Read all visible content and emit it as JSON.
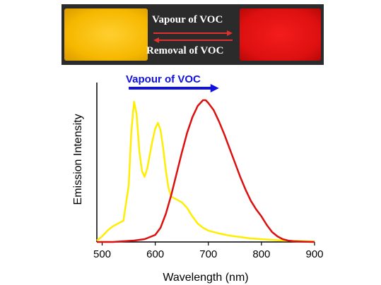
{
  "banner": {
    "top_label": "Vapour of VOC",
    "bottom_label": "Removal of VOC",
    "colors": {
      "background": "#2b2b2b",
      "yellow": "#f6b800",
      "red": "#dd1010",
      "arrow": "#e03030"
    }
  },
  "chart_data": {
    "type": "line",
    "title": "",
    "xlabel": "Wavelength (nm)",
    "ylabel": "Emission Intensity",
    "xlim": [
      490,
      900
    ],
    "ylim": [
      0,
      1.05
    ],
    "xticks": [
      500,
      600,
      700,
      800,
      900
    ],
    "xtick_labels": [
      "500",
      "600",
      "700",
      "800",
      "900"
    ],
    "grid": false,
    "legend": "none",
    "annotation": {
      "text": "Vapour of VOC",
      "color": "#1010e0",
      "arrow_from_x": 550,
      "arrow_to_x": 720
    },
    "series": [
      {
        "color": "#ffee00",
        "x": [
          490,
          500,
          510,
          520,
          530,
          540,
          550,
          555,
          560,
          565,
          570,
          575,
          580,
          585,
          590,
          595,
          600,
          605,
          610,
          615,
          620,
          625,
          630,
          640,
          650,
          660,
          670,
          680,
          690,
          700,
          720,
          740,
          760,
          780,
          800,
          820,
          840,
          860,
          880,
          900
        ],
        "y": [
          0.01,
          0.04,
          0.08,
          0.11,
          0.13,
          0.15,
          0.4,
          0.78,
          0.99,
          0.9,
          0.64,
          0.5,
          0.46,
          0.52,
          0.62,
          0.72,
          0.8,
          0.84,
          0.79,
          0.66,
          0.5,
          0.38,
          0.32,
          0.3,
          0.28,
          0.24,
          0.18,
          0.13,
          0.1,
          0.08,
          0.06,
          0.045,
          0.035,
          0.025,
          0.02,
          0.015,
          0.01,
          0.008,
          0.005,
          0.003
        ]
      },
      {
        "color": "#dd1010",
        "x": [
          490,
          520,
          540,
          560,
          580,
          600,
          610,
          620,
          630,
          640,
          650,
          660,
          670,
          680,
          690,
          695,
          700,
          710,
          720,
          730,
          740,
          750,
          760,
          770,
          780,
          790,
          800,
          810,
          820,
          830,
          840,
          850,
          860,
          880,
          900
        ],
        "y": [
          0.0,
          0.0,
          0.005,
          0.01,
          0.02,
          0.05,
          0.1,
          0.2,
          0.33,
          0.48,
          0.63,
          0.77,
          0.88,
          0.96,
          1.0,
          1.0,
          0.98,
          0.93,
          0.85,
          0.76,
          0.66,
          0.56,
          0.46,
          0.37,
          0.29,
          0.23,
          0.18,
          0.12,
          0.07,
          0.04,
          0.02,
          0.01,
          0.005,
          0.002,
          0.0
        ]
      }
    ]
  }
}
